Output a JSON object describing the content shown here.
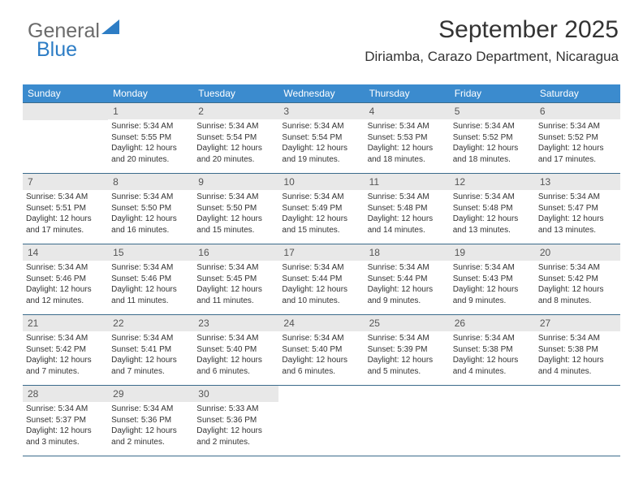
{
  "logo": {
    "text1": "General",
    "text2": "Blue"
  },
  "header": {
    "title": "September 2025",
    "location": "Diriamba, Carazo Department, Nicaragua"
  },
  "colors": {
    "header_bar": "#3b8bce",
    "daynum_bg": "#e8e8e8",
    "week_border": "#3b6b8b",
    "logo_gray": "#6b6b6b",
    "logo_blue": "#2d7dc5",
    "background": "#ffffff"
  },
  "typography": {
    "title_fontsize": 30,
    "location_fontsize": 17,
    "dayhead_fontsize": 12,
    "daynum_fontsize": 12,
    "body_fontsize": 10
  },
  "dayheads": [
    "Sunday",
    "Monday",
    "Tuesday",
    "Wednesday",
    "Thursday",
    "Friday",
    "Saturday"
  ],
  "weeks": [
    [
      null,
      {
        "n": "1",
        "sr": "Sunrise: 5:34 AM",
        "ss": "Sunset: 5:55 PM",
        "d1": "Daylight: 12 hours",
        "d2": "and 20 minutes."
      },
      {
        "n": "2",
        "sr": "Sunrise: 5:34 AM",
        "ss": "Sunset: 5:54 PM",
        "d1": "Daylight: 12 hours",
        "d2": "and 20 minutes."
      },
      {
        "n": "3",
        "sr": "Sunrise: 5:34 AM",
        "ss": "Sunset: 5:54 PM",
        "d1": "Daylight: 12 hours",
        "d2": "and 19 minutes."
      },
      {
        "n": "4",
        "sr": "Sunrise: 5:34 AM",
        "ss": "Sunset: 5:53 PM",
        "d1": "Daylight: 12 hours",
        "d2": "and 18 minutes."
      },
      {
        "n": "5",
        "sr": "Sunrise: 5:34 AM",
        "ss": "Sunset: 5:52 PM",
        "d1": "Daylight: 12 hours",
        "d2": "and 18 minutes."
      },
      {
        "n": "6",
        "sr": "Sunrise: 5:34 AM",
        "ss": "Sunset: 5:52 PM",
        "d1": "Daylight: 12 hours",
        "d2": "and 17 minutes."
      }
    ],
    [
      {
        "n": "7",
        "sr": "Sunrise: 5:34 AM",
        "ss": "Sunset: 5:51 PM",
        "d1": "Daylight: 12 hours",
        "d2": "and 17 minutes."
      },
      {
        "n": "8",
        "sr": "Sunrise: 5:34 AM",
        "ss": "Sunset: 5:50 PM",
        "d1": "Daylight: 12 hours",
        "d2": "and 16 minutes."
      },
      {
        "n": "9",
        "sr": "Sunrise: 5:34 AM",
        "ss": "Sunset: 5:50 PM",
        "d1": "Daylight: 12 hours",
        "d2": "and 15 minutes."
      },
      {
        "n": "10",
        "sr": "Sunrise: 5:34 AM",
        "ss": "Sunset: 5:49 PM",
        "d1": "Daylight: 12 hours",
        "d2": "and 15 minutes."
      },
      {
        "n": "11",
        "sr": "Sunrise: 5:34 AM",
        "ss": "Sunset: 5:48 PM",
        "d1": "Daylight: 12 hours",
        "d2": "and 14 minutes."
      },
      {
        "n": "12",
        "sr": "Sunrise: 5:34 AM",
        "ss": "Sunset: 5:48 PM",
        "d1": "Daylight: 12 hours",
        "d2": "and 13 minutes."
      },
      {
        "n": "13",
        "sr": "Sunrise: 5:34 AM",
        "ss": "Sunset: 5:47 PM",
        "d1": "Daylight: 12 hours",
        "d2": "and 13 minutes."
      }
    ],
    [
      {
        "n": "14",
        "sr": "Sunrise: 5:34 AM",
        "ss": "Sunset: 5:46 PM",
        "d1": "Daylight: 12 hours",
        "d2": "and 12 minutes."
      },
      {
        "n": "15",
        "sr": "Sunrise: 5:34 AM",
        "ss": "Sunset: 5:46 PM",
        "d1": "Daylight: 12 hours",
        "d2": "and 11 minutes."
      },
      {
        "n": "16",
        "sr": "Sunrise: 5:34 AM",
        "ss": "Sunset: 5:45 PM",
        "d1": "Daylight: 12 hours",
        "d2": "and 11 minutes."
      },
      {
        "n": "17",
        "sr": "Sunrise: 5:34 AM",
        "ss": "Sunset: 5:44 PM",
        "d1": "Daylight: 12 hours",
        "d2": "and 10 minutes."
      },
      {
        "n": "18",
        "sr": "Sunrise: 5:34 AM",
        "ss": "Sunset: 5:44 PM",
        "d1": "Daylight: 12 hours",
        "d2": "and 9 minutes."
      },
      {
        "n": "19",
        "sr": "Sunrise: 5:34 AM",
        "ss": "Sunset: 5:43 PM",
        "d1": "Daylight: 12 hours",
        "d2": "and 9 minutes."
      },
      {
        "n": "20",
        "sr": "Sunrise: 5:34 AM",
        "ss": "Sunset: 5:42 PM",
        "d1": "Daylight: 12 hours",
        "d2": "and 8 minutes."
      }
    ],
    [
      {
        "n": "21",
        "sr": "Sunrise: 5:34 AM",
        "ss": "Sunset: 5:42 PM",
        "d1": "Daylight: 12 hours",
        "d2": "and 7 minutes."
      },
      {
        "n": "22",
        "sr": "Sunrise: 5:34 AM",
        "ss": "Sunset: 5:41 PM",
        "d1": "Daylight: 12 hours",
        "d2": "and 7 minutes."
      },
      {
        "n": "23",
        "sr": "Sunrise: 5:34 AM",
        "ss": "Sunset: 5:40 PM",
        "d1": "Daylight: 12 hours",
        "d2": "and 6 minutes."
      },
      {
        "n": "24",
        "sr": "Sunrise: 5:34 AM",
        "ss": "Sunset: 5:40 PM",
        "d1": "Daylight: 12 hours",
        "d2": "and 6 minutes."
      },
      {
        "n": "25",
        "sr": "Sunrise: 5:34 AM",
        "ss": "Sunset: 5:39 PM",
        "d1": "Daylight: 12 hours",
        "d2": "and 5 minutes."
      },
      {
        "n": "26",
        "sr": "Sunrise: 5:34 AM",
        "ss": "Sunset: 5:38 PM",
        "d1": "Daylight: 12 hours",
        "d2": "and 4 minutes."
      },
      {
        "n": "27",
        "sr": "Sunrise: 5:34 AM",
        "ss": "Sunset: 5:38 PM",
        "d1": "Daylight: 12 hours",
        "d2": "and 4 minutes."
      }
    ],
    [
      {
        "n": "28",
        "sr": "Sunrise: 5:34 AM",
        "ss": "Sunset: 5:37 PM",
        "d1": "Daylight: 12 hours",
        "d2": "and 3 minutes."
      },
      {
        "n": "29",
        "sr": "Sunrise: 5:34 AM",
        "ss": "Sunset: 5:36 PM",
        "d1": "Daylight: 12 hours",
        "d2": "and 2 minutes."
      },
      {
        "n": "30",
        "sr": "Sunrise: 5:33 AM",
        "ss": "Sunset: 5:36 PM",
        "d1": "Daylight: 12 hours",
        "d2": "and 2 minutes."
      },
      null,
      null,
      null,
      null
    ]
  ]
}
